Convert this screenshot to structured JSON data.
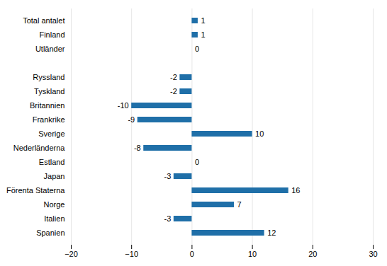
{
  "chart_data": {
    "type": "bar",
    "orientation": "horizontal",
    "categories": [
      "Total antalet",
      "Finland",
      "Utländer",
      null,
      "Ryssland",
      "Tyskland",
      "Britannien",
      "Frankrike",
      "Sverige",
      "Nederländerna",
      "Estland",
      "Japan",
      "Förenta Staterna",
      "Norge",
      "Italien",
      "Spanien"
    ],
    "values": [
      1,
      1,
      0,
      null,
      -2,
      -2,
      -10,
      -9,
      10,
      -8,
      0,
      -3,
      16,
      7,
      -3,
      12
    ],
    "color": "#1F6FA8",
    "xlim": [
      -20,
      30
    ],
    "xticks": [
      -20,
      -10,
      0,
      10,
      20,
      30
    ],
    "grid": true,
    "data_labels": true
  }
}
